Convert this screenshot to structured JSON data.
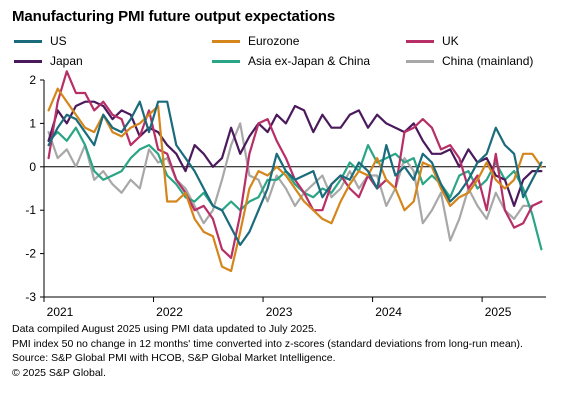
{
  "title": "Manufacturing PMI future output expectations",
  "legend": [
    {
      "name": "US",
      "color": "#1a6b7c"
    },
    {
      "name": "Eurozone",
      "color": "#d4861c"
    },
    {
      "name": "UK",
      "color": "#b82e66"
    },
    {
      "name": "Japan",
      "color": "#4a1a5c"
    },
    {
      "name": "Asia ex-Japan & China",
      "color": "#2aa585"
    },
    {
      "name": "China (mainland)",
      "color": "#a8a8a8"
    }
  ],
  "notes": [
    "Data compiled August 2025 using PMI data updated to July 2025.",
    "PMI index 50 no change in 12 months' time converted into z-scores (standard deviations from long-run mean).",
    "Source: S&P Global PMI with HCOB, S&P Global Market Intelligence.",
    "© 2025 S&P Global."
  ],
  "chart_data": {
    "type": "line",
    "title": "Manufacturing PMI future output expectations",
    "x_start": "2021-01",
    "x_end": "2025-07",
    "frequency": "monthly",
    "x_tick_labels": [
      "2021",
      "2022",
      "2023",
      "2024",
      "2025"
    ],
    "y_ticks": [
      2,
      1,
      0,
      -1,
      -2,
      -3
    ],
    "ylim": [
      -3,
      2
    ],
    "grid": false,
    "zero_line": true,
    "legend_position": "top",
    "series": [
      {
        "name": "US",
        "color": "#1a6b7c",
        "values": [
          0.5,
          0.9,
          1.2,
          1.1,
          0.8,
          0.5,
          1.2,
          0.9,
          0.8,
          1.1,
          1.5,
          0.8,
          1.5,
          1.5,
          0.5,
          0.2,
          -0.1,
          -0.5,
          -0.9,
          -1.0,
          -1.4,
          -1.8,
          -1.5,
          -1.0,
          -0.5,
          0.3,
          -0.1,
          -0.3,
          -0.2,
          -0.1,
          -0.7,
          -0.4,
          -0.2,
          -0.3,
          0.1,
          -0.1,
          -0.5,
          0.5,
          -0.2,
          0.0,
          -0.3,
          0.3,
          0.1,
          -0.4,
          -0.8,
          -0.6,
          -0.3,
          0.1,
          0.3,
          0.9,
          0.5,
          0.3,
          -0.7,
          -0.3,
          0.1
        ]
      },
      {
        "name": "Eurozone",
        "color": "#d4861c",
        "values": [
          1.3,
          1.8,
          1.5,
          1.2,
          0.9,
          0.8,
          1.2,
          0.8,
          0.7,
          0.9,
          1.0,
          1.2,
          1.4,
          -0.8,
          -0.8,
          -0.6,
          -1.2,
          -1.5,
          -1.6,
          -2.3,
          -2.4,
          -1.5,
          -0.5,
          -0.1,
          -0.2,
          0.0,
          -0.2,
          -0.5,
          -0.8,
          -1.0,
          -1.2,
          -1.3,
          -0.8,
          -0.4,
          -0.1,
          -0.2,
          0.2,
          -0.3,
          -0.5,
          -1.0,
          -0.8,
          0.1,
          0.0,
          -0.5,
          -0.9,
          -0.7,
          -0.6,
          -0.3,
          0.1,
          -0.3,
          -0.5,
          -0.3,
          0.3,
          0.3,
          0.0
        ]
      },
      {
        "name": "UK",
        "color": "#b82e66",
        "values": [
          0.2,
          1.5,
          2.2,
          1.7,
          1.7,
          1.3,
          1.5,
          1.2,
          1.1,
          0.5,
          0.7,
          1.3,
          0.4,
          0.3,
          -0.3,
          -0.6,
          -1.0,
          -0.9,
          -1.2,
          -1.9,
          -2.1,
          -1.1,
          0.3,
          1.0,
          1.1,
          0.6,
          0.2,
          -0.3,
          -0.6,
          -1.0,
          -1.0,
          -0.4,
          -0.2,
          -0.5,
          -0.7,
          -0.2,
          -0.5,
          -0.3,
          -0.5,
          0.8,
          0.9,
          1.1,
          0.9,
          0.4,
          0.5,
          0.2,
          -0.5,
          -0.2,
          -1.0,
          0.3,
          -1.0,
          -1.4,
          -1.3,
          -0.9,
          -0.8
        ]
      },
      {
        "name": "Japan",
        "color": "#4a1a5c",
        "values": [
          0.6,
          1.3,
          1.0,
          1.4,
          1.5,
          1.5,
          1.4,
          1.1,
          1.3,
          1.2,
          0.7,
          0.9,
          0.8,
          0.5,
          0.3,
          -0.1,
          0.5,
          0.3,
          0.0,
          0.2,
          0.9,
          0.3,
          0.7,
          1.0,
          0.8,
          1.2,
          1.0,
          1.4,
          1.3,
          0.8,
          1.2,
          0.9,
          0.9,
          1.2,
          1.3,
          0.9,
          1.2,
          1.0,
          0.9,
          0.8,
          1.0,
          0.6,
          0.3,
          0.3,
          0.4,
          0.0,
          0.4,
          0.1,
          0.2,
          -0.2,
          -0.3,
          -0.9,
          -0.3,
          -0.1,
          -0.1
        ]
      },
      {
        "name": "Asia ex-Japan & China",
        "color": "#2aa585",
        "values": [
          0.6,
          0.8,
          0.6,
          0.9,
          0.5,
          -0.1,
          -0.3,
          -0.2,
          -0.1,
          0.2,
          0.4,
          0.5,
          0.3,
          -0.2,
          -0.4,
          -0.7,
          -0.8,
          -0.6,
          -0.9,
          -1.0,
          -0.8,
          -1.0,
          -0.8,
          -0.7,
          -0.3,
          -0.3,
          -0.1,
          -0.4,
          -0.6,
          -0.7,
          -0.5,
          -0.6,
          -0.3,
          0.1,
          -0.1,
          0.5,
          0.1,
          0.2,
          0.3,
          0.1,
          0.2,
          -0.4,
          -0.2,
          -0.4,
          -0.7,
          -0.2,
          -0.1,
          -0.5,
          -0.3,
          0.1,
          -0.3,
          -0.1,
          -0.5,
          -1.1,
          -1.9
        ]
      },
      {
        "name": "China (mainland)",
        "color": "#a8a8a8",
        "values": [
          0.8,
          0.2,
          0.4,
          0.0,
          0.5,
          -0.3,
          -0.1,
          -0.4,
          -0.6,
          -0.3,
          -0.5,
          0.4,
          0.1,
          0.2,
          -0.3,
          -0.5,
          -0.9,
          -1.3,
          -1.0,
          -0.3,
          0.5,
          1.0,
          -0.2,
          -0.3,
          -0.8,
          -0.2,
          -0.5,
          -0.9,
          -0.6,
          -0.4,
          -0.2,
          -0.7,
          -0.5,
          -0.1,
          -0.5,
          -0.2,
          -0.2,
          -0.9,
          -0.5,
          0.2,
          -0.1,
          -1.3,
          -1.0,
          -0.6,
          -1.7,
          -1.2,
          -0.5,
          -0.9,
          -1.2,
          -0.6,
          -1.0,
          -1.2,
          -0.9,
          -0.9,
          -0.8
        ]
      }
    ]
  }
}
